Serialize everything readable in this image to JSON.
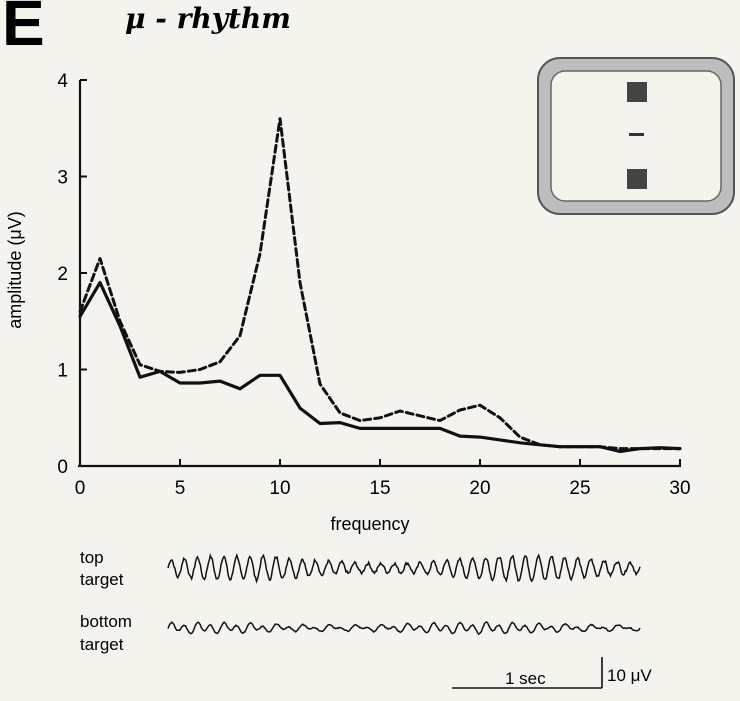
{
  "panel_letter": "E",
  "chart_data": {
    "type": "line",
    "title": "μ - rhythm",
    "xlabel": "frequency",
    "ylabel": "amplitude (μV)",
    "xlim": [
      0,
      30
    ],
    "ylim": [
      0,
      4
    ],
    "xticks": [
      "0",
      "5",
      "10",
      "15",
      "20",
      "25",
      "30"
    ],
    "yticks": [
      "0",
      "1",
      "2",
      "3",
      "4"
    ],
    "grid": false,
    "series": [
      {
        "style": "dashed",
        "x": [
          0,
          1,
          2,
          3,
          4,
          5,
          6,
          7,
          8,
          9,
          10,
          11,
          12,
          13,
          14,
          15,
          16,
          17,
          18,
          19,
          20,
          21,
          22,
          23,
          24,
          25,
          26,
          27,
          28,
          29,
          30
        ],
        "y": [
          1.6,
          2.15,
          1.5,
          1.05,
          0.98,
          0.97,
          1.0,
          1.08,
          1.35,
          2.2,
          3.6,
          1.9,
          0.85,
          0.55,
          0.47,
          0.5,
          0.57,
          0.52,
          0.47,
          0.58,
          0.63,
          0.5,
          0.3,
          0.22,
          0.2,
          0.2,
          0.2,
          0.18,
          0.18,
          0.18,
          0.18
        ]
      },
      {
        "style": "solid",
        "x": [
          0,
          1,
          2,
          3,
          4,
          5,
          6,
          7,
          8,
          9,
          10,
          11,
          12,
          13,
          14,
          15,
          16,
          17,
          18,
          19,
          20,
          21,
          22,
          23,
          24,
          25,
          26,
          27,
          28,
          29,
          30
        ],
        "y": [
          1.55,
          1.9,
          1.45,
          0.92,
          0.98,
          0.86,
          0.86,
          0.88,
          0.8,
          0.94,
          0.94,
          0.6,
          0.44,
          0.45,
          0.39,
          0.39,
          0.39,
          0.39,
          0.39,
          0.31,
          0.3,
          0.27,
          0.24,
          0.22,
          0.2,
          0.2,
          0.2,
          0.15,
          0.18,
          0.19,
          0.18
        ]
      }
    ]
  },
  "inset": {
    "description": "cursor with top and bottom targets",
    "target_color": "#444444",
    "frame_color": "#888888"
  },
  "traces": [
    {
      "label_line1": "top",
      "label_line2": "target",
      "amplitude": 1.0
    },
    {
      "label_line1": "bottom",
      "label_line2": "target",
      "amplitude": 0.35
    }
  ],
  "scalebar": {
    "time_label": "1 sec",
    "amp_label": "10 μV"
  }
}
